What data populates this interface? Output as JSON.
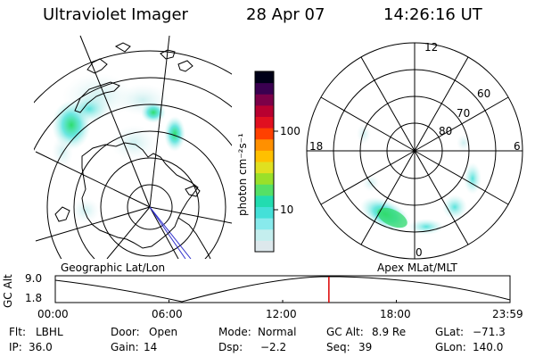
{
  "header": {
    "instrument": "Ultraviolet Imager",
    "date": "28 Apr 07",
    "time": "14:26:16 UT"
  },
  "colorbar": {
    "unit_label": "photon cm⁻²s⁻¹",
    "tick_labels": [
      "100",
      "10"
    ],
    "colors": [
      "#dde8ec",
      "#c4eeee",
      "#88eaec",
      "#44e0d8",
      "#22dcb0",
      "#55e066",
      "#9ae02a",
      "#e0e020",
      "#ffc000",
      "#ff9000",
      "#ff4000",
      "#e01020",
      "#b80030",
      "#7c0048",
      "#3a0050",
      "#000018"
    ]
  },
  "polar_map": {
    "mlat_labels": [
      "60",
      "70",
      "80"
    ],
    "mlt_labels": {
      "top": "12",
      "left": "18",
      "right": "6",
      "bottom": "0"
    }
  },
  "map_labels": {
    "geographic": "Geographic Lat/Lon",
    "apex": "Apex MLat/MLT"
  },
  "altitude_plot": {
    "ylabel": "GC Alt",
    "y_ticks": [
      "9.0",
      "1.8"
    ],
    "x_ticks": [
      "00:00",
      "06:00",
      "12:00",
      "18:00",
      "23:59"
    ],
    "current_time_marker_hour": 14.44,
    "marker_color": "#dd0000"
  },
  "status": {
    "row1": [
      {
        "key": "Flt:",
        "value": "LBHL"
      },
      {
        "key": "Door:",
        "value": "Open"
      },
      {
        "key": "Mode:",
        "value": "Normal"
      },
      {
        "key": "GC Alt:",
        "value": "8.9 Re"
      },
      {
        "key": "GLat:",
        "value": "−71.3"
      }
    ],
    "row2": [
      {
        "key": "IP:",
        "value": "36.0"
      },
      {
        "key": "Gain:",
        "value": "14"
      },
      {
        "key": "Dsp:",
        "value": "−2.2"
      },
      {
        "key": "Seq:",
        "value": "39"
      },
      {
        "key": "GLon:",
        "value": "140.0"
      }
    ]
  }
}
